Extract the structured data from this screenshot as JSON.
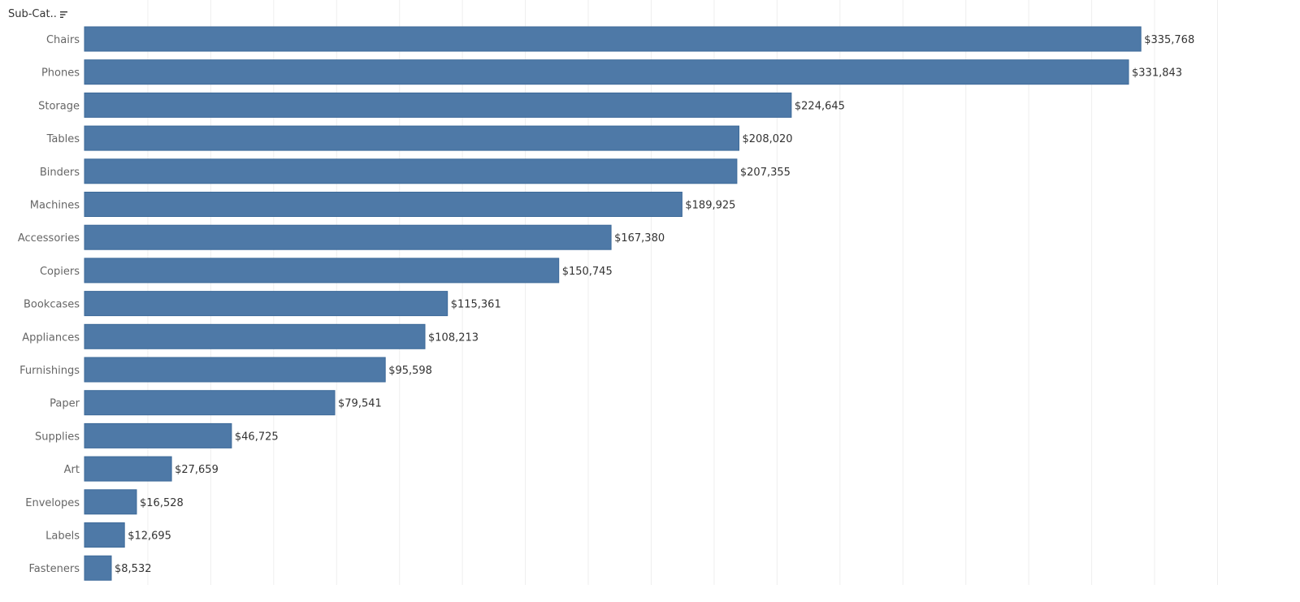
{
  "header": {
    "field_label": "Sub-Cat..",
    "sort_icon": "sort-descending-icon"
  },
  "chart_data": {
    "type": "bar",
    "orientation": "horizontal",
    "categories": [
      "Chairs",
      "Phones",
      "Storage",
      "Tables",
      "Binders",
      "Machines",
      "Accessories",
      "Copiers",
      "Bookcases",
      "Appliances",
      "Furnishings",
      "Paper",
      "Supplies",
      "Art",
      "Envelopes",
      "Labels",
      "Fasteners"
    ],
    "values": [
      335768,
      331843,
      224645,
      208020,
      207355,
      189925,
      167380,
      150745,
      115361,
      108213,
      95598,
      79541,
      46725,
      27659,
      16528,
      12695,
      8532
    ],
    "data_labels": [
      "$335,768",
      "$331,843",
      "$224,645",
      "$208,020",
      "$207,355",
      "$189,925",
      "$167,380",
      "$150,745",
      "$115,361",
      "$108,213",
      "$95,598",
      "$79,541",
      "$46,725",
      "$27,659",
      "$16,528",
      "$12,695",
      "$8,532"
    ],
    "xlim": [
      0,
      360000
    ],
    "grid": true,
    "legend": "none",
    "colors": {
      "bar": "#4e79a7",
      "bar_stroke": "#3d6a99",
      "grid": "#eeeeee",
      "category_label": "#666666",
      "data_label": "#333333"
    }
  }
}
